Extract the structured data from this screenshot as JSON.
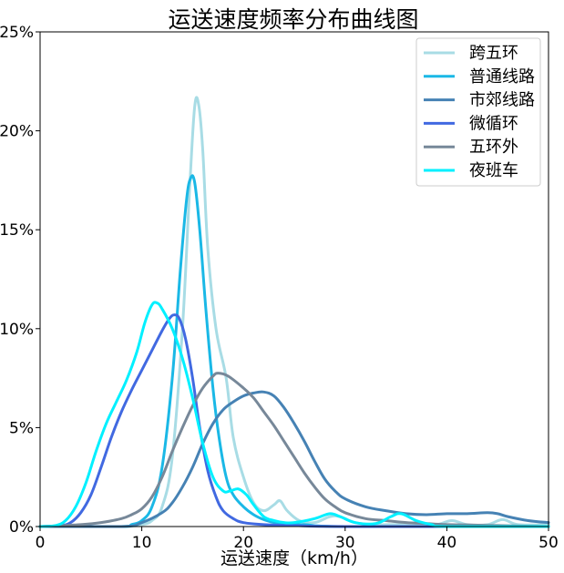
{
  "chart_data": {
    "type": "line",
    "title": "运送速度频率分布曲线图",
    "xlabel": "运送速度（km/h）",
    "ylabel": "",
    "xlim": [
      0,
      50
    ],
    "ylim": [
      0,
      25
    ],
    "xticks": [
      0,
      10,
      20,
      30,
      40,
      50
    ],
    "xtick_labels": [
      "0",
      "10",
      "20",
      "30",
      "40",
      "50"
    ],
    "yticks": [
      0,
      5,
      10,
      15,
      20,
      25
    ],
    "ytick_labels": [
      "0%",
      "5%",
      "10%",
      "15%",
      "20%",
      "25%"
    ],
    "grid": false,
    "legend_position": "top-right",
    "series": [
      {
        "name": "跨五环",
        "color": "#a8dce5",
        "points": [
          [
            0,
            0
          ],
          [
            8,
            0
          ],
          [
            10,
            0.1
          ],
          [
            11,
            0.3
          ],
          [
            12,
            1.0
          ],
          [
            13,
            3.5
          ],
          [
            14,
            10
          ],
          [
            14.7,
            17
          ],
          [
            15.2,
            21.2
          ],
          [
            15.6,
            21.3
          ],
          [
            16,
            19
          ],
          [
            16.5,
            14
          ],
          [
            17.3,
            10
          ],
          [
            18.3,
            7.5
          ],
          [
            19,
            4.5
          ],
          [
            20,
            2.5
          ],
          [
            21,
            1.2
          ],
          [
            22,
            0.8
          ],
          [
            23,
            1.1
          ],
          [
            23.6,
            1.3
          ],
          [
            24.3,
            0.8
          ],
          [
            25.5,
            0.3
          ],
          [
            27,
            0.2
          ],
          [
            28.5,
            0.5
          ],
          [
            29.5,
            0.5
          ],
          [
            31,
            0.2
          ],
          [
            33,
            0.1
          ],
          [
            35,
            0.1
          ],
          [
            37,
            0.1
          ],
          [
            39,
            0.1
          ],
          [
            40.5,
            0.3
          ],
          [
            42,
            0.1
          ],
          [
            44,
            0.1
          ],
          [
            45.5,
            0.35
          ],
          [
            47,
            0.1
          ],
          [
            50,
            0.1
          ]
        ]
      },
      {
        "name": "普通线路",
        "color": "#1ab8e6",
        "points": [
          [
            0,
            0
          ],
          [
            8,
            0
          ],
          [
            9,
            0.1
          ],
          [
            10,
            0.3
          ],
          [
            11,
            1.0
          ],
          [
            12,
            3.0
          ],
          [
            13,
            7.5
          ],
          [
            13.8,
            13
          ],
          [
            14.4,
            16.5
          ],
          [
            14.8,
            17.6
          ],
          [
            15.2,
            17.4
          ],
          [
            15.7,
            15
          ],
          [
            16.3,
            11
          ],
          [
            17,
            7
          ],
          [
            17.6,
            4.5
          ],
          [
            18.3,
            2.5
          ],
          [
            19,
            1.6
          ],
          [
            20,
            1.0
          ],
          [
            21,
            0.6
          ],
          [
            22,
            0.35
          ],
          [
            23,
            0.2
          ],
          [
            24,
            0.1
          ],
          [
            26,
            0.1
          ],
          [
            30,
            0
          ],
          [
            50,
            0
          ]
        ]
      },
      {
        "name": "市郊线路",
        "color": "#4682b4",
        "points": [
          [
            0,
            0
          ],
          [
            8,
            0
          ],
          [
            10,
            0.2
          ],
          [
            12,
            0.7
          ],
          [
            13,
            1.2
          ],
          [
            14,
            2.0
          ],
          [
            15,
            3.0
          ],
          [
            16,
            4.2
          ],
          [
            17,
            5.2
          ],
          [
            18,
            5.9
          ],
          [
            19,
            6.3
          ],
          [
            20,
            6.6
          ],
          [
            21,
            6.75
          ],
          [
            22,
            6.8
          ],
          [
            23,
            6.6
          ],
          [
            24,
            6.0
          ],
          [
            25,
            5.2
          ],
          [
            26,
            4.3
          ],
          [
            27,
            3.3
          ],
          [
            28,
            2.4
          ],
          [
            29,
            1.8
          ],
          [
            30,
            1.4
          ],
          [
            32,
            1.0
          ],
          [
            34,
            0.8
          ],
          [
            36,
            0.65
          ],
          [
            38,
            0.6
          ],
          [
            40,
            0.65
          ],
          [
            42,
            0.65
          ],
          [
            44,
            0.7
          ],
          [
            45,
            0.65
          ],
          [
            46,
            0.5
          ],
          [
            48,
            0.3
          ],
          [
            50,
            0.2
          ]
        ]
      },
      {
        "name": "微循环",
        "color": "#4169e1",
        "points": [
          [
            0,
            0
          ],
          [
            2,
            0.05
          ],
          [
            3,
            0.2
          ],
          [
            4,
            0.7
          ],
          [
            5,
            1.6
          ],
          [
            6,
            3.0
          ],
          [
            7,
            4.5
          ],
          [
            8,
            5.8
          ],
          [
            9,
            6.9
          ],
          [
            10,
            7.9
          ],
          [
            11,
            8.9
          ],
          [
            12,
            9.9
          ],
          [
            12.7,
            10.5
          ],
          [
            13.2,
            10.7
          ],
          [
            13.7,
            10.5
          ],
          [
            14.3,
            9.5
          ],
          [
            15,
            7.5
          ],
          [
            15.7,
            5.0
          ],
          [
            16.5,
            2.8
          ],
          [
            17.3,
            1.5
          ],
          [
            18,
            0.8
          ],
          [
            19,
            0.4
          ],
          [
            20,
            0.2
          ],
          [
            22,
            0.1
          ],
          [
            25,
            0.05
          ],
          [
            30,
            0
          ],
          [
            50,
            0
          ]
        ]
      },
      {
        "name": "五环外",
        "color": "#778899",
        "points": [
          [
            0,
            0
          ],
          [
            4,
            0.1
          ],
          [
            6,
            0.2
          ],
          [
            8,
            0.4
          ],
          [
            9,
            0.6
          ],
          [
            10,
            0.9
          ],
          [
            11,
            1.5
          ],
          [
            12,
            2.5
          ],
          [
            13,
            3.8
          ],
          [
            14,
            5.0
          ],
          [
            15,
            6.1
          ],
          [
            16,
            7.0
          ],
          [
            17,
            7.6
          ],
          [
            17.5,
            7.75
          ],
          [
            18.5,
            7.6
          ],
          [
            20,
            7.0
          ],
          [
            21,
            6.5
          ],
          [
            22,
            5.8
          ],
          [
            23,
            5.1
          ],
          [
            24,
            4.3
          ],
          [
            25,
            3.5
          ],
          [
            26,
            2.7
          ],
          [
            27,
            2.0
          ],
          [
            28,
            1.4
          ],
          [
            29,
            1.0
          ],
          [
            30,
            0.7
          ],
          [
            32,
            0.4
          ],
          [
            34,
            0.3
          ],
          [
            36,
            0.2
          ],
          [
            38,
            0.15
          ],
          [
            40,
            0.1
          ],
          [
            45,
            0.05
          ],
          [
            50,
            0
          ]
        ]
      },
      {
        "name": "夜班车",
        "color": "#00f0ff",
        "points": [
          [
            0,
            0
          ],
          [
            1.5,
            0.05
          ],
          [
            2.5,
            0.3
          ],
          [
            3.5,
            1.0
          ],
          [
            4.5,
            2.2
          ],
          [
            5.5,
            3.8
          ],
          [
            6.5,
            5.2
          ],
          [
            7.5,
            6.3
          ],
          [
            8.5,
            7.4
          ],
          [
            9.5,
            8.8
          ],
          [
            10.3,
            10.3
          ],
          [
            11,
            11.2
          ],
          [
            11.5,
            11.3
          ],
          [
            12,
            11.0
          ],
          [
            13,
            10.0
          ],
          [
            14,
            8.5
          ],
          [
            15,
            6.5
          ],
          [
            16,
            4.2
          ],
          [
            17,
            2.5
          ],
          [
            18,
            1.8
          ],
          [
            18.7,
            1.8
          ],
          [
            19.5,
            1.9
          ],
          [
            20.3,
            1.6
          ],
          [
            21,
            1.1
          ],
          [
            22,
            0.5
          ],
          [
            23,
            0.3
          ],
          [
            24,
            0.2
          ],
          [
            25,
            0.2
          ],
          [
            27,
            0.4
          ],
          [
            28.5,
            0.65
          ],
          [
            29.5,
            0.5
          ],
          [
            31,
            0.2
          ],
          [
            33,
            0.15
          ],
          [
            34.5,
            0.5
          ],
          [
            35.5,
            0.65
          ],
          [
            37,
            0.3
          ],
          [
            38.5,
            0.1
          ],
          [
            40,
            0
          ],
          [
            50,
            0
          ]
        ]
      }
    ]
  }
}
